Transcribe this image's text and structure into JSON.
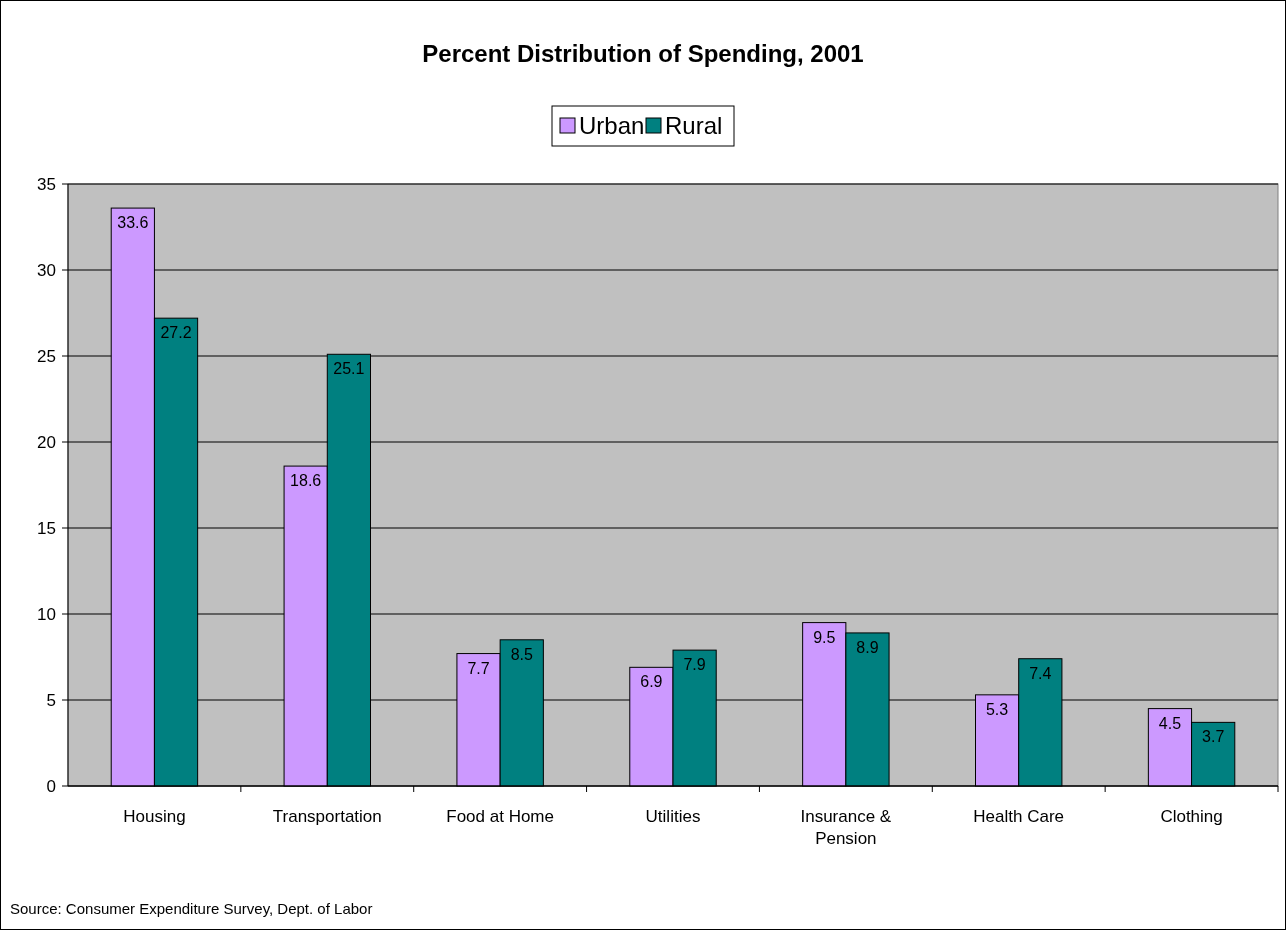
{
  "chart_data": {
    "type": "bar",
    "title": "Percent Distribution of Spending, 2001",
    "categories": [
      "Housing",
      "Transportation",
      "Food at Home",
      "Utilities",
      "Insurance & Pension",
      "Health Care",
      "Clothing"
    ],
    "series": [
      {
        "name": "Urban",
        "color": "#cc99ff",
        "values": [
          33.6,
          18.6,
          7.7,
          6.9,
          9.5,
          5.3,
          4.5
        ]
      },
      {
        "name": "Rural",
        "color": "#008080",
        "values": [
          27.2,
          25.1,
          8.5,
          7.9,
          8.9,
          7.4,
          3.7
        ]
      }
    ],
    "ylim": [
      0,
      35
    ],
    "yticks": [
      0,
      5,
      10,
      15,
      20,
      25,
      30,
      35
    ],
    "grid": "y",
    "legend": "top",
    "data_labels": true,
    "annotations": [
      "Source: Consumer Expenditure Survey, Dept. of Labor"
    ]
  }
}
